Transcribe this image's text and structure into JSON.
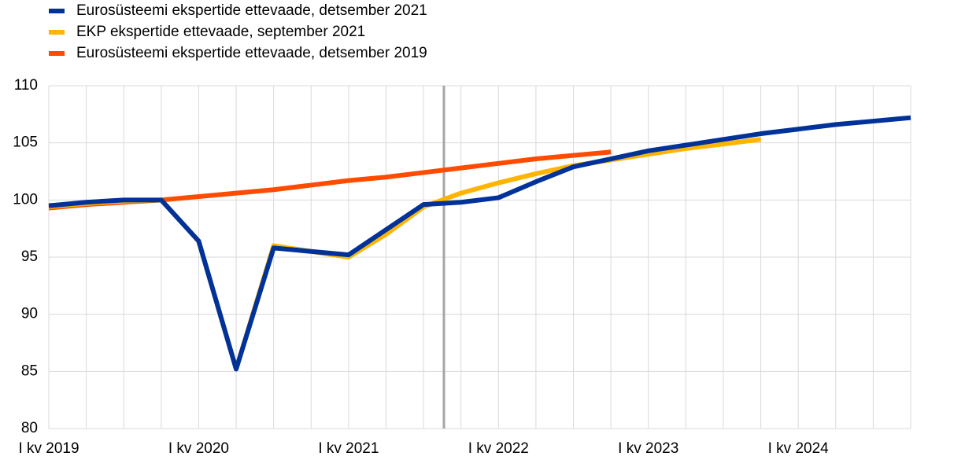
{
  "chart_data": {
    "type": "line",
    "categories": [
      "I kv 2019",
      null,
      null,
      null,
      "I kv 2020",
      null,
      null,
      null,
      "I kv 2021",
      null,
      null,
      null,
      "I kv 2022",
      null,
      null,
      null,
      "I kv 2023",
      null,
      null,
      null,
      "I kv 2024",
      null,
      null,
      null
    ],
    "series": [
      {
        "name": "Eurosüsteemi ekspertide ettevaade, detsember 2021",
        "color": "#003299",
        "values": [
          99.5,
          99.8,
          100.0,
          100.0,
          96.4,
          85.2,
          95.8,
          95.5,
          95.2,
          97.4,
          99.6,
          99.8,
          100.2,
          101.6,
          102.9,
          103.6,
          104.3,
          104.8,
          105.3,
          105.8,
          106.2,
          106.6,
          106.9,
          107.2
        ]
      },
      {
        "name": "EKP ekspertide ettevaade, september 2021",
        "color": "#ffb400",
        "values": [
          99.4,
          99.7,
          99.9,
          100.0,
          96.4,
          85.2,
          96.0,
          95.5,
          95.0,
          97.0,
          99.4,
          100.6,
          101.5,
          102.3,
          103.0,
          103.5,
          104.0,
          104.5,
          104.9,
          105.3,
          null,
          null,
          null,
          null
        ]
      },
      {
        "name": "Eurosüsteemi ekspertide ettevaade, detsember 2019",
        "color": "#ff4b00",
        "values": [
          99.3,
          99.6,
          99.8,
          100.0,
          100.3,
          100.6,
          100.9,
          101.3,
          101.7,
          102.0,
          102.4,
          102.8,
          103.2,
          103.6,
          103.9,
          104.2,
          null,
          null,
          null,
          null,
          null,
          null,
          null,
          null
        ]
      }
    ],
    "ylim": [
      80,
      110
    ],
    "yticks": [
      80,
      85,
      90,
      95,
      100,
      105,
      110
    ],
    "grid": true
  }
}
